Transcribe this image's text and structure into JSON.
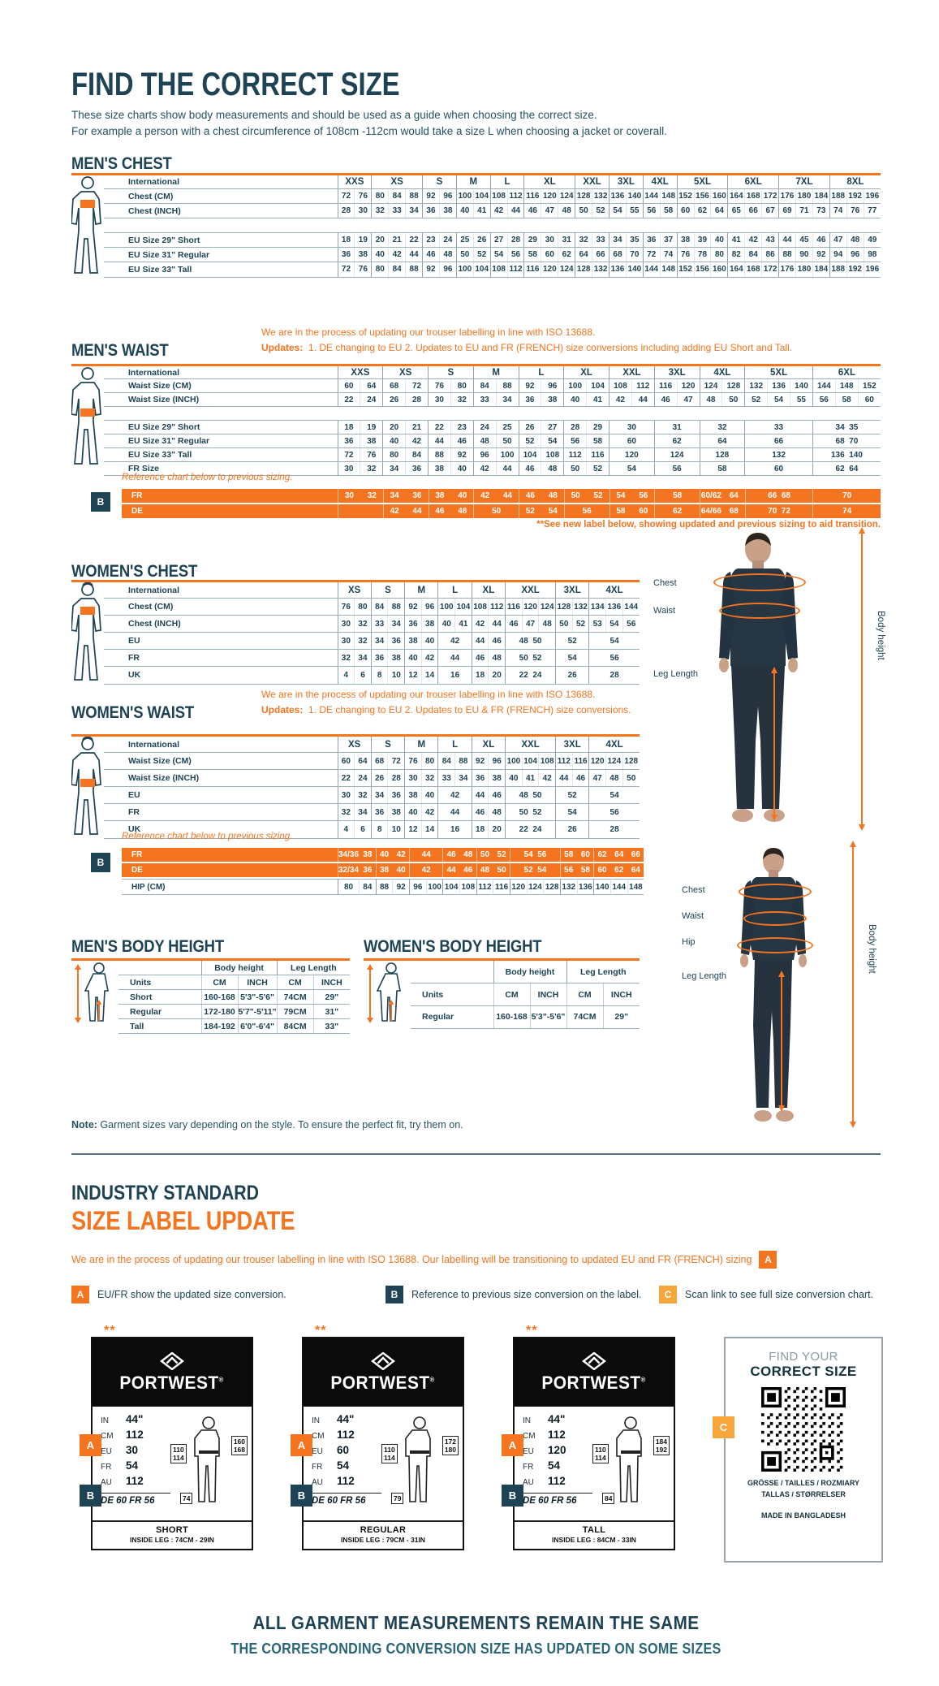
{
  "page": {
    "title": "FIND THE CORRECT SIZE",
    "intro_line1": "These size charts show body measurements and should be used as a guide when choosing the correct size.",
    "intro_line2": "For example a person with a chest circumference of 108cm -112cm would take a size L when choosing a jacket or coverall.",
    "note_label": "Note:",
    "note_text": " Garment sizes vary depending on the style. To ensure the perfect fit, try them on.",
    "footer_line1": "ALL GARMENT MEASUREMENTS REMAIN THE SAME",
    "footer_line2": "THE CORRESPONDING CONVERSION SIZE HAS UPDATED ON SOME SIZES"
  },
  "colors": {
    "accent_orange": "#f4741f",
    "navy": "#1d4354",
    "amber": "#f6a63a"
  },
  "figures": {
    "chest": "Chest",
    "waist": "Waist",
    "hip": "Hip",
    "leg_length": "Leg Length",
    "body_height": "Body height"
  },
  "mens_chest": {
    "heading": "MEN'S CHEST",
    "icon": "male-chest-figure-icon",
    "label_header": "International",
    "sizes": [
      {
        "label": "XXS",
        "span": 2
      },
      {
        "label": "XS",
        "span": 3
      },
      {
        "label": "S",
        "span": 2
      },
      {
        "label": "M",
        "span": 2
      },
      {
        "label": "L",
        "span": 2
      },
      {
        "label": "XL",
        "span": 3
      },
      {
        "label": "XXL",
        "span": 2
      },
      {
        "label": "3XL",
        "span": 2
      },
      {
        "label": "4XL",
        "span": 2
      },
      {
        "label": "5XL",
        "span": 3
      },
      {
        "label": "6XL",
        "span": 3
      },
      {
        "label": "7XL",
        "span": 3
      },
      {
        "label": "8XL",
        "span": 3
      }
    ],
    "rows": [
      {
        "label": "Chest (CM)",
        "cells": [
          "72 76",
          "80 84 88",
          "92 96",
          "100 104",
          "108 112",
          "116 120 124",
          "128 132",
          "136 140",
          "144 148",
          "152 156 160",
          "164 168 172",
          "176 180 184",
          "188 192 196"
        ]
      },
      {
        "label": "Chest (INCH)",
        "cells": [
          "28 30",
          "32 33 34",
          "36 38",
          "40 41",
          "42 44",
          "46 47 48",
          "50 52",
          "54 55",
          "56 58",
          "60 62 64",
          "65 66 67",
          "69 71 73",
          "74 76 77"
        ]
      },
      {
        "spacer": true
      },
      {
        "label": "EU Size 29\" Short",
        "cells": [
          "18 19",
          "20 21 22",
          "23 24",
          "25 26",
          "27 28",
          "29 30 31",
          "32 33",
          "34 35",
          "36 37",
          "38 39 40",
          "41 42 43",
          "44 45 46",
          "47 48 49"
        ]
      },
      {
        "label": "EU Size 31\" Regular",
        "cells": [
          "36 38",
          "40 42 44",
          "46 48",
          "50 52",
          "54 56",
          "58 60 62",
          "64 66",
          "68 70",
          "72 74",
          "76 78 80",
          "82 84 86",
          "88 90 92",
          "94 96 98"
        ]
      },
      {
        "label": "EU Size 33\" Tall",
        "cells": [
          "72 76",
          "80 84 88",
          "92 96",
          "100 104",
          "108 112",
          "116 120 124",
          "128 132",
          "136 140",
          "144 148",
          "152 156 160",
          "164 168 172",
          "176 180 184",
          "188 192 196"
        ]
      }
    ]
  },
  "mens_waist": {
    "heading": "MEN'S WAIST",
    "icon": "male-waist-figure-icon",
    "label_header": "International",
    "notice_line1": "We are in the process of updating our trouser labelling in line with ISO 13688.",
    "updates_label": "Updates:",
    "updates_text": "1. DE changing to EU    2. Updates to EU and FR (FRENCH) size conversions including adding EU Short and Tall.",
    "ref_note": "Reference chart below to previous sizing.",
    "footnote": "**See new label below, showing updated and previous sizing to aid transition.",
    "sizes": [
      {
        "label": "XXS",
        "span": 2
      },
      {
        "label": "XS",
        "span": 2
      },
      {
        "label": "S",
        "span": 2
      },
      {
        "label": "M",
        "span": 2
      },
      {
        "label": "L",
        "span": 2
      },
      {
        "label": "XL",
        "span": 2
      },
      {
        "label": "XXL",
        "span": 2
      },
      {
        "label": "3XL",
        "span": 2
      },
      {
        "label": "4XL",
        "span": 2
      },
      {
        "label": "5XL",
        "span": 3
      },
      {
        "label": "6XL",
        "span": 3
      }
    ],
    "rows": [
      {
        "label": "Waist Size (CM)",
        "cells": [
          "60 64",
          "68 72",
          "76 80",
          "84 88",
          "92 96",
          "100 104",
          "108 112",
          "116 120",
          "124 128",
          "132 136 140",
          "144 148 152"
        ]
      },
      {
        "label": "Waist Size (INCH)",
        "cells": [
          "22 24",
          "26 28",
          "30 32",
          "33 34",
          "36 38",
          "40 41",
          "42 44",
          "46 47",
          "48 50",
          "52 54 55",
          "56 58 60"
        ]
      },
      {
        "spacer": true
      },
      {
        "label": "EU Size 29\" Short",
        "cells": [
          "18 19",
          "20 21",
          "22 23",
          "24 25",
          "26 27",
          "28 29",
          "30",
          "31",
          "32",
          "33",
          "34 35"
        ]
      },
      {
        "label": "EU Size 31\" Regular",
        "cells": [
          "36 38",
          "40 42",
          "44 46",
          "48 50",
          "52 54",
          "56 58",
          "60",
          "62",
          "64",
          "66",
          "68 70"
        ]
      },
      {
        "label": "EU Size 33\" Tall",
        "cells": [
          "72 76",
          "80 84",
          "88 92",
          "96 100",
          "104 108",
          "112 116",
          "120",
          "124",
          "128",
          "132",
          "136 140"
        ]
      },
      {
        "label": "FR Size",
        "cells": [
          "30 32",
          "34 36",
          "38 40",
          "42 44",
          "46 48",
          "50 52",
          "54",
          "56",
          "58",
          "60",
          "62 64"
        ]
      }
    ],
    "prev_rows": [
      {
        "label": "FR",
        "cls": "o",
        "cells": [
          "30 32",
          "34 36",
          "38 40",
          "42 44",
          "46 48",
          "50 52",
          "54 56",
          "58",
          "60/62 64",
          "66 68",
          "70"
        ]
      },
      {
        "label": "DE",
        "cls": "o",
        "cells": [
          "",
          "42 44",
          "46 48",
          "50",
          "52 54",
          "56",
          "58 60",
          "62",
          "64/66 68",
          "70 72",
          "74"
        ]
      }
    ]
  },
  "womens_chest": {
    "heading": "WOMEN'S CHEST",
    "icon": "female-chest-figure-icon",
    "label_header": "International",
    "sizes": [
      {
        "label": "XS",
        "span": 2
      },
      {
        "label": "S",
        "span": 2
      },
      {
        "label": "M",
        "span": 2
      },
      {
        "label": "L",
        "span": 2
      },
      {
        "label": "XL",
        "span": 2
      },
      {
        "label": "XXL",
        "span": 3
      },
      {
        "label": "3XL",
        "span": 2
      },
      {
        "label": "4XL",
        "span": 3
      }
    ],
    "rows": [
      {
        "label": "Chest (CM)",
        "cells": [
          "76 80",
          "84 88",
          "92 96",
          "100 104",
          "108 112",
          "116 120 124",
          "128 132",
          "134 136 144"
        ]
      },
      {
        "label": "Chest (INCH)",
        "cells": [
          "30 32",
          "33 34",
          "36 38",
          "40 41",
          "42 44",
          "46 47 48",
          "50 52",
          "53 54 56"
        ]
      },
      {
        "label": "EU",
        "cells": [
          "30 32",
          "34 36",
          "38 40",
          "42",
          "44 46",
          "48 50",
          "52",
          "54"
        ]
      },
      {
        "label": "FR",
        "cells": [
          "32 34",
          "36 38",
          "40 42",
          "44",
          "46 48",
          "50 52",
          "54",
          "56"
        ]
      },
      {
        "label": "UK",
        "cells": [
          "4 6",
          "8 10",
          "12 14",
          "16",
          "18 20",
          "22 24",
          "26",
          "28"
        ]
      }
    ]
  },
  "womens_waist": {
    "heading": "WOMEN'S WAIST",
    "icon": "female-waist-figure-icon",
    "label_header": "International",
    "notice_line1": "We are in the process of updating our trouser labelling in line with ISO 13688.",
    "updates_label": "Updates:",
    "updates_text": "1. DE changing to EU    2. Updates to EU & FR (FRENCH) size conversions.",
    "ref_note": "Reference chart below to previous sizing.",
    "sizes": [
      {
        "label": "XS",
        "span": 2
      },
      {
        "label": "S",
        "span": 2
      },
      {
        "label": "M",
        "span": 2
      },
      {
        "label": "L",
        "span": 2
      },
      {
        "label": "XL",
        "span": 2
      },
      {
        "label": "XXL",
        "span": 3
      },
      {
        "label": "3XL",
        "span": 2
      },
      {
        "label": "4XL",
        "span": 3
      }
    ],
    "rows": [
      {
        "label": "Waist Size (CM)",
        "cells": [
          "60 64",
          "68 72",
          "76 80",
          "84 88",
          "92 96",
          "100 104 108",
          "112 116",
          "120 124 128"
        ]
      },
      {
        "label": "Waist Size (INCH)",
        "cells": [
          "22 24",
          "26 28",
          "30 32",
          "33 34",
          "36 38",
          "40 41 42",
          "44 46",
          "47 48 50"
        ]
      },
      {
        "label": "EU",
        "cells": [
          "30 32",
          "34 36",
          "38 40",
          "42",
          "44 46",
          "48 50",
          "52",
          "54"
        ]
      },
      {
        "label": "FR",
        "cells": [
          "32 34",
          "36 38",
          "40 42",
          "44",
          "46 48",
          "50 52",
          "54",
          "56"
        ]
      },
      {
        "label": "UK",
        "cells": [
          "4 6",
          "8 10",
          "12 14",
          "16",
          "18 20",
          "22 24",
          "26",
          "28"
        ]
      }
    ],
    "prev_rows": [
      {
        "label": "FR",
        "cls": "o",
        "cells": [
          "34/36 38",
          "40 42",
          "44",
          "46 48",
          "50 52",
          "54 56",
          "58 60",
          "62 64 66"
        ]
      },
      {
        "label": "DE",
        "cls": "o",
        "cells": [
          "32/34 36",
          "38 40",
          "42",
          "44 46",
          "48 50",
          "52 54",
          "56 58",
          "60 62 64"
        ]
      },
      {
        "label": "HIP (CM)",
        "cls": "hip",
        "cells": [
          "80 84",
          "88 92",
          "96 100",
          "104 108",
          "112 116",
          "120 124 128",
          "132 136",
          "140 144 148"
        ]
      }
    ]
  },
  "mens_body_height": {
    "heading": "MEN'S BODY HEIGHT",
    "icon": "male-height-figure-icon",
    "group1": "Body height",
    "group2": "Leg Length",
    "unit_row": [
      "Units",
      "CM",
      "INCH",
      "CM",
      "INCH"
    ],
    "rows": [
      [
        "Short",
        "160-168",
        "5'3\"-5'6\"",
        "74CM",
        "29\""
      ],
      [
        "Regular",
        "172-180",
        "5'7\"-5'11\"",
        "79CM",
        "31\""
      ],
      [
        "Tall",
        "184-192",
        "6'0\"-6'4\"",
        "84CM",
        "33\""
      ]
    ]
  },
  "womens_body_height": {
    "heading": "WOMEN'S BODY HEIGHT",
    "icon": "female-height-figure-icon",
    "group1": "Body height",
    "group2": "Leg Length",
    "unit_row": [
      "Units",
      "CM",
      "INCH",
      "CM",
      "INCH"
    ],
    "rows": [
      [
        "Regular",
        "160-168",
        "5'3\"-5'6\"",
        "74CM",
        "29\""
      ]
    ]
  },
  "size_label_update": {
    "heading_line1": "INDUSTRY STANDARD",
    "heading_line2": "SIZE LABEL UPDATE",
    "paragraph": "We are in the process of updating our trouser labelling in line with ISO 13688. Our labelling will be transitioning to updated EU and FR (FRENCH) sizing",
    "badge_a": "A",
    "badge_b": "B",
    "badge_c": "C",
    "stars": "**",
    "legend": [
      {
        "key": "A",
        "text": "EU/FR show the updated size conversion."
      },
      {
        "key": "B",
        "text": "Reference to previous size conversion on the label."
      },
      {
        "key": "C",
        "text": "Scan link to see full size conversion chart."
      }
    ]
  },
  "cards": [
    {
      "brand": "PORTWEST",
      "reg": "®",
      "rows": [
        [
          "IN",
          "44\""
        ],
        [
          "CM",
          "112"
        ],
        [
          "EU",
          "30"
        ],
        [
          "FR",
          "54"
        ],
        [
          "AU",
          "112"
        ]
      ],
      "prev_line": "DE 60 FR 56",
      "side_box": [
        "110",
        "114"
      ],
      "height_box": [
        "160",
        "168"
      ],
      "leg_box": "74",
      "fit": "SHORT",
      "inside_leg": "INSIDE LEG : 74CM - 29IN"
    },
    {
      "brand": "PORTWEST",
      "reg": "®",
      "rows": [
        [
          "IN",
          "44\""
        ],
        [
          "CM",
          "112"
        ],
        [
          "EU",
          "60"
        ],
        [
          "FR",
          "54"
        ],
        [
          "AU",
          "112"
        ]
      ],
      "prev_line": "DE 60 FR 56",
      "side_box": [
        "110",
        "114"
      ],
      "height_box": [
        "172",
        "180"
      ],
      "leg_box": "79",
      "fit": "REGULAR",
      "inside_leg": "INSIDE LEG : 79CM - 31IN"
    },
    {
      "brand": "PORTWEST",
      "reg": "®",
      "rows": [
        [
          "IN",
          "44\""
        ],
        [
          "CM",
          "112"
        ],
        [
          "EU",
          "120"
        ],
        [
          "FR",
          "54"
        ],
        [
          "AU",
          "112"
        ]
      ],
      "prev_line": "DE 60 FR 56",
      "side_box": [
        "110",
        "114"
      ],
      "height_box": [
        "184",
        "192"
      ],
      "leg_box": "84",
      "fit": "TALL",
      "inside_leg": "INSIDE LEG : 84CM - 33IN"
    }
  ],
  "qr_card": {
    "line1": "FIND YOUR",
    "line2": "CORRECT SIZE",
    "lang_line1": "GRÖSSE / TAILLES / ROZMIARY",
    "lang_line2": "TALLAS / STØRRELSER",
    "made_in": "MADE IN BANGLADESH"
  }
}
